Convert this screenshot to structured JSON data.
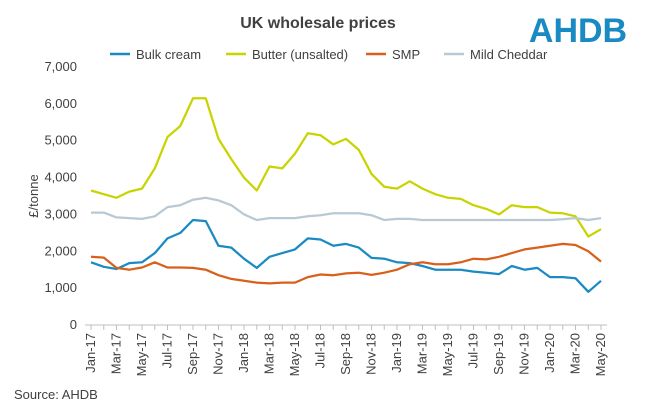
{
  "chart_data": {
    "type": "line",
    "title": "UK wholesale prices",
    "logo": "AHDB",
    "source": "Source: AHDB",
    "y_label": "£/tonne",
    "categories": [
      "Jan-17",
      null,
      "Mar-17",
      null,
      "May-17",
      null,
      "Jul-17",
      null,
      "Sep-17",
      null,
      "Nov-17",
      null,
      "Jan-18",
      null,
      "Mar-18",
      null,
      "May-18",
      null,
      "Jul-18",
      null,
      "Sep-18",
      null,
      "Nov-18",
      null,
      "Jan-19",
      null,
      "Mar-19",
      null,
      "May-19",
      null,
      "Jul-19",
      null,
      "Sep-19",
      null,
      "Nov-19",
      null,
      "Jan-20",
      null,
      "Mar-20",
      null,
      "May-20"
    ],
    "series": [
      {
        "name": "Bulk cream",
        "color": "#1a8bc2",
        "values": [
          1700,
          1580,
          1520,
          1680,
          1700,
          1950,
          2350,
          2500,
          2850,
          2820,
          2150,
          2100,
          1800,
          1550,
          1850,
          1950,
          2050,
          2350,
          2320,
          2150,
          2200,
          2100,
          1820,
          1800,
          1700,
          1680,
          1600,
          1500,
          1500,
          1500,
          1450,
          1420,
          1380,
          1600,
          1500,
          1550,
          1300,
          1300,
          1270,
          900,
          1200
        ]
      },
      {
        "name": "Butter (unsalted)",
        "color": "#c8d400",
        "values": [
          3650,
          3550,
          3450,
          3620,
          3700,
          4250,
          5100,
          5400,
          6150,
          6150,
          5050,
          4500,
          4000,
          3650,
          4300,
          4250,
          4650,
          5200,
          5150,
          4900,
          5050,
          4750,
          4100,
          3750,
          3700,
          3900,
          3700,
          3550,
          3450,
          3420,
          3250,
          3150,
          3000,
          3250,
          3200,
          3200,
          3050,
          3030,
          2950,
          2400,
          2600
        ]
      },
      {
        "name": "SMP",
        "color": "#d8601a",
        "values": [
          1850,
          1830,
          1550,
          1500,
          1560,
          1700,
          1560,
          1560,
          1550,
          1500,
          1350,
          1250,
          1200,
          1150,
          1130,
          1150,
          1150,
          1300,
          1370,
          1350,
          1400,
          1420,
          1360,
          1420,
          1500,
          1650,
          1700,
          1650,
          1650,
          1700,
          1800,
          1780,
          1850,
          1950,
          2050,
          2100,
          2150,
          2200,
          2170,
          2000,
          1720
        ]
      },
      {
        "name": "Mild Cheddar",
        "color": "#b9c9d3",
        "values": [
          3050,
          3050,
          2920,
          2900,
          2880,
          2950,
          3200,
          3250,
          3400,
          3450,
          3380,
          3250,
          3000,
          2850,
          2900,
          2900,
          2900,
          2950,
          2980,
          3030,
          3030,
          3030,
          2980,
          2850,
          2880,
          2880,
          2850,
          2850,
          2850,
          2850,
          2850,
          2850,
          2850,
          2850,
          2850,
          2850,
          2850,
          2870,
          2900,
          2850,
          2900
        ]
      }
    ],
    "ylim": [
      0,
      7000
    ],
    "yticks": [
      0,
      {
        "value": 1000,
        "label": "1,000"
      },
      {
        "value": 2000,
        "label": "2,000"
      },
      {
        "value": 3000,
        "label": "3,000"
      },
      {
        "value": 4000,
        "label": "4,000"
      },
      {
        "value": 5000,
        "label": "5,000"
      },
      {
        "value": 6000,
        "label": "6,000"
      },
      {
        "value": 7000,
        "label": "7,000"
      }
    ],
    "grid": false,
    "legend": "top"
  }
}
